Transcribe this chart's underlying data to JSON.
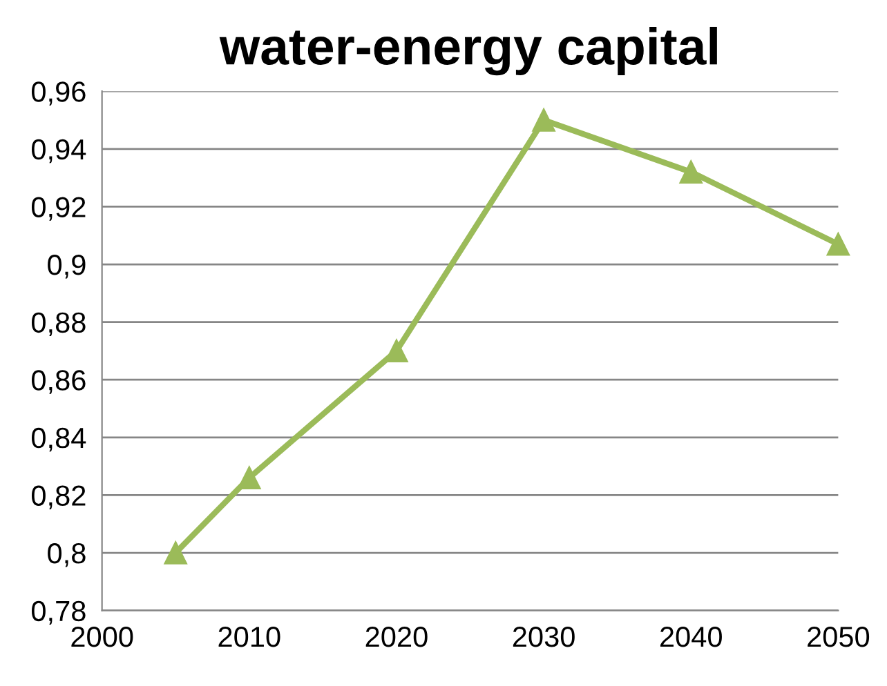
{
  "chart_data": {
    "type": "line",
    "title": "water-energy capital",
    "x": [
      2005,
      2010,
      2020,
      2030,
      2040,
      2050
    ],
    "series": [
      {
        "color": "#9bbb59",
        "values": [
          0.8,
          0.826,
          0.87,
          0.95,
          0.932,
          0.907
        ]
      }
    ],
    "xlim": [
      2000,
      2050
    ],
    "xticks": [
      2000,
      2010,
      2020,
      2030,
      2040,
      2050
    ],
    "ylim": [
      0.78,
      0.96
    ],
    "yticks": [
      {
        "value": 0.78,
        "label": "0,78"
      },
      {
        "value": 0.8,
        "label": "0,8"
      },
      {
        "value": 0.82,
        "label": "0,82"
      },
      {
        "value": 0.84,
        "label": "0,84"
      },
      {
        "value": 0.86,
        "label": "0,86"
      },
      {
        "value": 0.88,
        "label": "0,88"
      },
      {
        "value": 0.9,
        "label": "0,9"
      },
      {
        "value": 0.92,
        "label": "0,92"
      },
      {
        "value": 0.94,
        "label": "0,94"
      },
      {
        "value": 0.96,
        "label": "0,96"
      }
    ],
    "grid": "y",
    "marker": "triangle",
    "line_style": "solid",
    "legend": false
  }
}
